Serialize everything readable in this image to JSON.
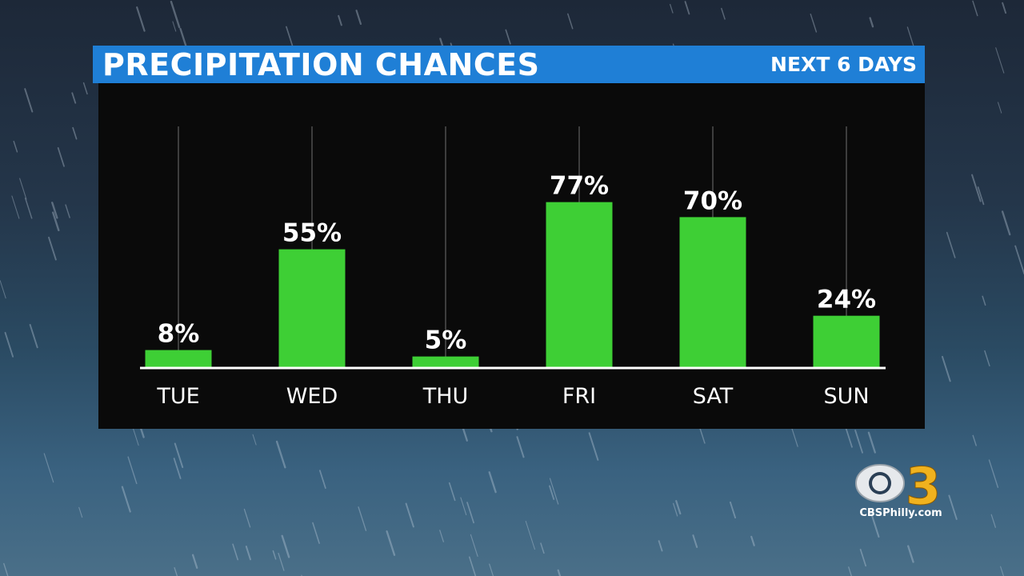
{
  "header": {
    "title": "PRECIPITATION CHANCES",
    "subtitle": "NEXT 6 DAYS"
  },
  "chart_data": {
    "type": "bar",
    "categories": [
      "TUE",
      "WED",
      "THU",
      "FRI",
      "SAT",
      "SUN"
    ],
    "values": [
      8,
      55,
      5,
      77,
      70,
      24
    ],
    "value_labels": [
      "8%",
      "55%",
      "5%",
      "77%",
      "70%",
      "24%"
    ],
    "ylim": [
      0,
      100
    ],
    "grid": true,
    "bar_color": "#3ecf35",
    "title": "PRECIPITATION CHANCES",
    "xlabel": "",
    "ylabel": ""
  },
  "logo": {
    "number": "3",
    "website": "CBSPhilly.com"
  },
  "colors": {
    "header_bg": "#1f7fd6",
    "panel_bg": "#0a0a0a",
    "bar": "#3ecf35",
    "text": "#ffffff"
  }
}
